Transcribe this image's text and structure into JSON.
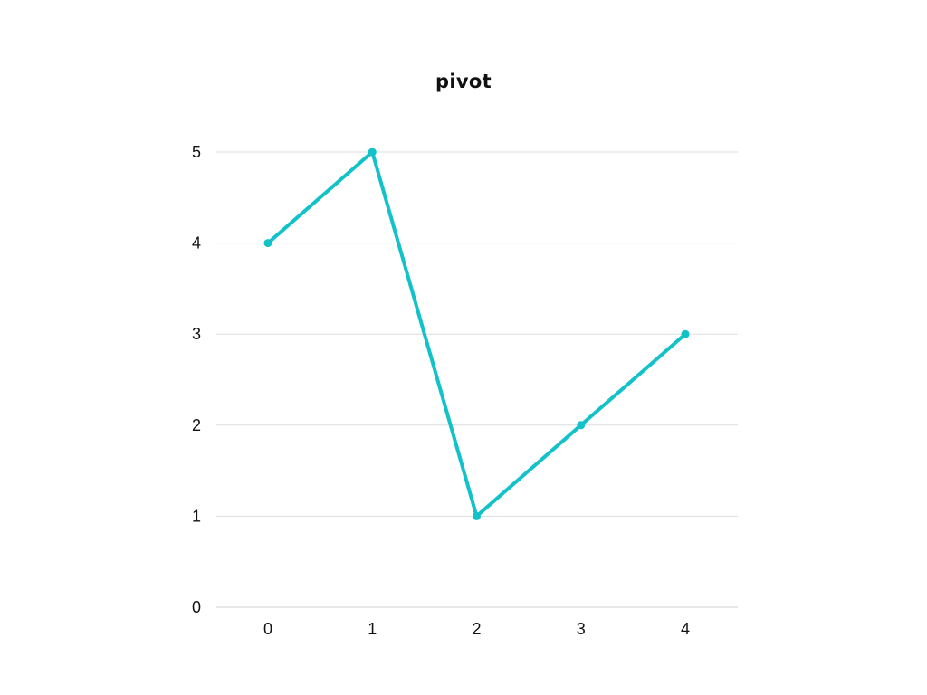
{
  "chart_data": {
    "type": "line",
    "title": "pivot",
    "xlabel": "",
    "ylabel": "",
    "x": [
      0,
      1,
      2,
      3,
      4
    ],
    "x_tick_labels": [
      "0",
      "1",
      "2",
      "3",
      "4"
    ],
    "y_tick_labels": [
      "0",
      "1",
      "2",
      "3",
      "4",
      "5"
    ],
    "ylim": [
      0,
      5
    ],
    "grid": true,
    "series": [
      {
        "values": [
          4,
          5,
          1,
          2,
          3
        ],
        "color": "#12c2c8"
      }
    ]
  }
}
